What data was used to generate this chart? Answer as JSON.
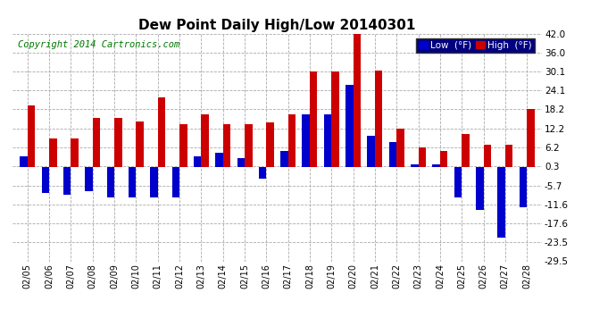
{
  "title": "Dew Point Daily High/Low 20140301",
  "copyright": "Copyright 2014 Cartronics.com",
  "dates": [
    "02/05",
    "02/06",
    "02/07",
    "02/08",
    "02/09",
    "02/10",
    "02/11",
    "02/12",
    "02/13",
    "02/14",
    "02/15",
    "02/16",
    "02/17",
    "02/18",
    "02/19",
    "02/20",
    "02/21",
    "02/22",
    "02/23",
    "02/24",
    "02/25",
    "02/26",
    "02/27",
    "02/28"
  ],
  "high": [
    19.5,
    9.0,
    9.0,
    15.5,
    15.5,
    14.5,
    22.0,
    13.5,
    16.5,
    13.5,
    13.5,
    14.0,
    16.5,
    30.1,
    30.1,
    42.0,
    30.5,
    12.2,
    6.2,
    5.2,
    10.5,
    7.2,
    7.2,
    18.2
  ],
  "low": [
    3.5,
    -8.0,
    -8.5,
    -7.5,
    -9.5,
    -9.5,
    -9.5,
    -9.5,
    3.5,
    4.5,
    3.0,
    -3.5,
    5.0,
    16.5,
    16.5,
    26.0,
    10.0,
    8.0,
    0.8,
    0.8,
    -9.5,
    -13.5,
    -22.0,
    -12.5
  ],
  "high_color": "#cc0000",
  "low_color": "#0000cc",
  "background_color": "#ffffff",
  "grid_color": "#aaaaaa",
  "ylim": [
    -29.5,
    42.0
  ],
  "yticks": [
    42.0,
    36.0,
    30.1,
    24.1,
    18.2,
    12.2,
    6.2,
    0.3,
    -5.7,
    -11.6,
    -17.6,
    -23.5,
    -29.5
  ],
  "legend_low_label": "Low  (°F)",
  "legend_high_label": "High  (°F)",
  "bar_width": 0.35,
  "title_fontsize": 11,
  "copyright_fontsize": 7.5
}
